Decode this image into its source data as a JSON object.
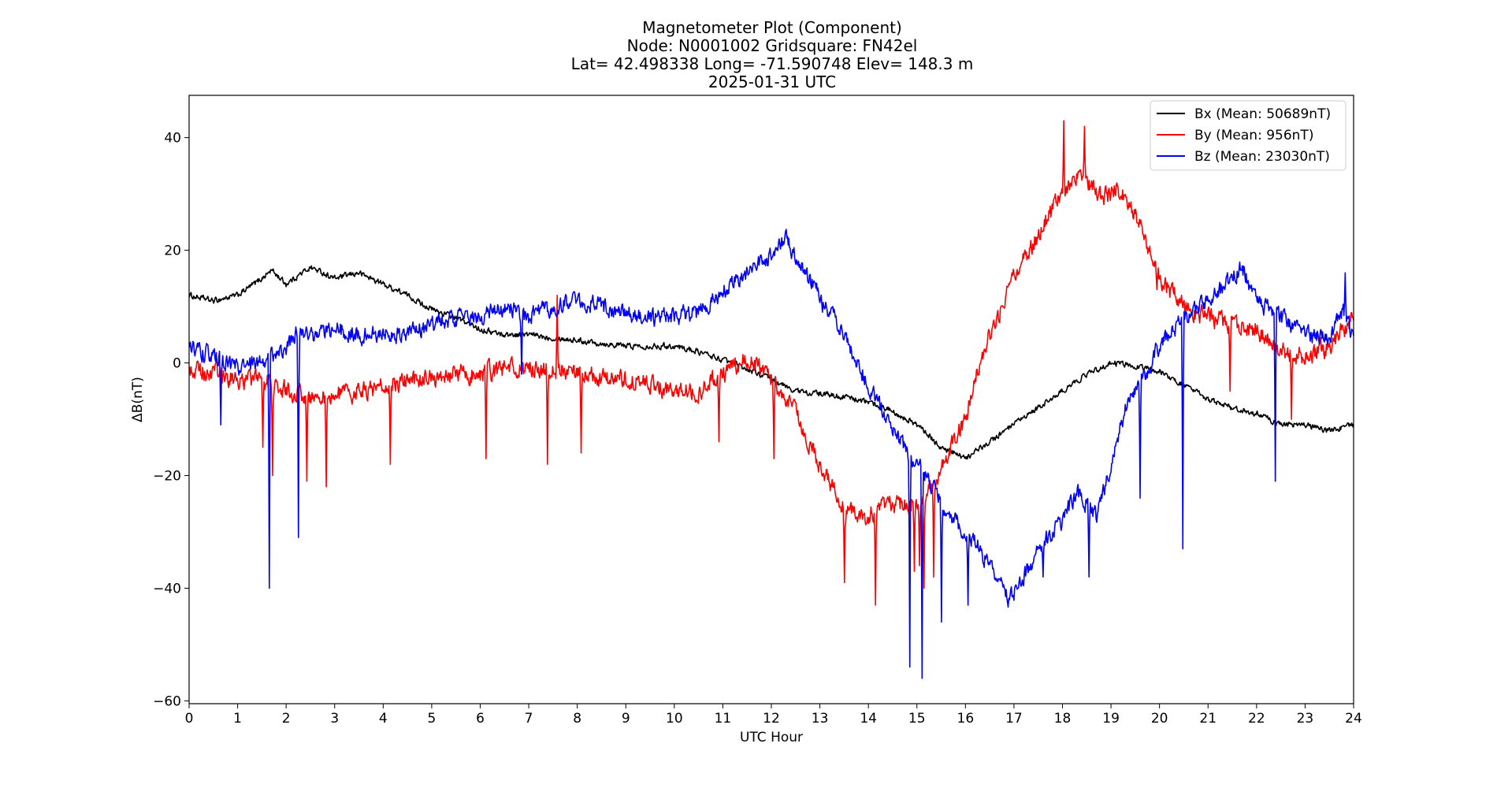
{
  "chart_data": {
    "type": "line",
    "title_lines": [
      "Magnetometer Plot (Component)",
      "Node:  N0001002     Gridsquare:  FN42el",
      "Lat= 42.498338    Long= -71.590748    Elev= 148.3 m",
      "2025-01-31  UTC"
    ],
    "xlabel": "UTC Hour",
    "ylabel": "ΔB(nT)",
    "xlim": [
      0,
      24
    ],
    "ylim": [
      -60.5,
      47.5
    ],
    "xticks": [
      0,
      1,
      2,
      3,
      4,
      5,
      6,
      7,
      8,
      9,
      10,
      11,
      12,
      13,
      14,
      15,
      16,
      17,
      18,
      19,
      20,
      21,
      22,
      23,
      24
    ],
    "xtick_labels": [
      "0",
      "1",
      "2",
      "3",
      "4",
      "5",
      "6",
      "7",
      "8",
      "9",
      "10",
      "11",
      "12",
      "13",
      "14",
      "15",
      "16",
      "17",
      "18",
      "19",
      "20",
      "21",
      "22",
      "23",
      "24"
    ],
    "yticks": [
      40,
      20,
      0,
      -20,
      -40,
      -60
    ],
    "ytick_labels": [
      "40",
      "20",
      "0",
      "−20",
      "−40",
      "−60"
    ],
    "grid": false,
    "legend_position": "top-right",
    "series": [
      {
        "name": "Bx (Mean: 50689nT)",
        "color": "#000000",
        "noise": 0.8,
        "spikes": [],
        "points": [
          [
            0,
            12
          ],
          [
            0.5,
            11
          ],
          [
            1,
            12
          ],
          [
            1.5,
            15
          ],
          [
            1.7,
            16.5
          ],
          [
            2,
            14
          ],
          [
            2.5,
            17
          ],
          [
            3,
            15
          ],
          [
            3.5,
            16
          ],
          [
            4,
            14
          ],
          [
            4.5,
            12
          ],
          [
            5,
            9.5
          ],
          [
            5.5,
            8
          ],
          [
            6,
            6
          ],
          [
            6.5,
            5
          ],
          [
            7,
            5
          ],
          [
            7.5,
            4.5
          ],
          [
            8,
            4
          ],
          [
            8.5,
            3.5
          ],
          [
            9,
            3
          ],
          [
            9.5,
            3
          ],
          [
            10,
            3
          ],
          [
            10.5,
            2
          ],
          [
            11,
            0.5
          ],
          [
            11.5,
            -1
          ],
          [
            12,
            -3
          ],
          [
            12.5,
            -5
          ],
          [
            13,
            -5.5
          ],
          [
            13.5,
            -6
          ],
          [
            14,
            -7
          ],
          [
            14.5,
            -8.5
          ],
          [
            15,
            -11
          ],
          [
            15.5,
            -15
          ],
          [
            16,
            -17
          ],
          [
            16.5,
            -14
          ],
          [
            17,
            -11
          ],
          [
            17.5,
            -8
          ],
          [
            18,
            -5
          ],
          [
            18.5,
            -2
          ],
          [
            19,
            0
          ],
          [
            19.5,
            -0.5
          ],
          [
            20,
            -1.5
          ],
          [
            20.5,
            -4
          ],
          [
            21,
            -6.5
          ],
          [
            21.5,
            -8
          ],
          [
            22,
            -9
          ],
          [
            22.5,
            -11
          ],
          [
            23,
            -11
          ],
          [
            23.5,
            -12
          ],
          [
            24,
            -11
          ]
        ]
      },
      {
        "name": "By (Mean: 956nT)",
        "color": "#ff0000",
        "noise": 2.6,
        "spikes": [
          [
            1.52,
            -15
          ],
          [
            1.72,
            -20
          ],
          [
            2.42,
            -21
          ],
          [
            2.82,
            -22
          ],
          [
            4.15,
            -18
          ],
          [
            6.12,
            -17
          ],
          [
            7.38,
            -18
          ],
          [
            7.58,
            12
          ],
          [
            8.08,
            -16
          ],
          [
            10.92,
            -14
          ],
          [
            12.05,
            -17
          ],
          [
            13.5,
            -39
          ],
          [
            14.15,
            -43
          ],
          [
            14.95,
            -37
          ],
          [
            15.05,
            -36
          ],
          [
            15.15,
            -40
          ],
          [
            15.35,
            -38
          ],
          [
            18.02,
            43
          ],
          [
            18.45,
            42
          ],
          [
            19.95,
            13
          ],
          [
            21.45,
            -5
          ],
          [
            22.72,
            -10
          ]
        ],
        "points": [
          [
            0,
            -1
          ],
          [
            0.5,
            -2
          ],
          [
            1,
            -3
          ],
          [
            1.5,
            -3
          ],
          [
            2,
            -5
          ],
          [
            2.5,
            -6
          ],
          [
            3,
            -6
          ],
          [
            3.5,
            -5
          ],
          [
            4,
            -4
          ],
          [
            4.5,
            -3
          ],
          [
            5,
            -3
          ],
          [
            5.5,
            -2
          ],
          [
            6,
            -2
          ],
          [
            6.5,
            -1
          ],
          [
            7,
            -1
          ],
          [
            7.5,
            -1
          ],
          [
            8,
            -2
          ],
          [
            8.5,
            -3
          ],
          [
            9,
            -3
          ],
          [
            9.5,
            -4
          ],
          [
            10,
            -5
          ],
          [
            10.5,
            -5
          ],
          [
            11,
            -2
          ],
          [
            11.5,
            1
          ],
          [
            12,
            -3
          ],
          [
            12.5,
            -9
          ],
          [
            13,
            -18
          ],
          [
            13.5,
            -26
          ],
          [
            14,
            -27
          ],
          [
            14.5,
            -25
          ],
          [
            15,
            -25
          ],
          [
            15.3,
            -22
          ],
          [
            15.6,
            -17
          ],
          [
            16,
            -10
          ],
          [
            16.2,
            -3
          ],
          [
            16.5,
            5
          ],
          [
            17,
            15
          ],
          [
            17.5,
            23
          ],
          [
            18,
            30
          ],
          [
            18.4,
            34
          ],
          [
            18.8,
            29
          ],
          [
            19.1,
            31
          ],
          [
            19.5,
            27
          ],
          [
            19.8,
            20
          ],
          [
            20,
            15
          ],
          [
            20.5,
            10
          ],
          [
            21,
            8
          ],
          [
            21.5,
            7
          ],
          [
            22,
            6
          ],
          [
            22.5,
            2
          ],
          [
            23,
            1
          ],
          [
            23.5,
            3
          ],
          [
            24,
            8
          ]
        ]
      },
      {
        "name": "Bz (Mean: 23030nT)",
        "color": "#0000ff",
        "noise": 2.4,
        "spikes": [
          [
            0.65,
            -11
          ],
          [
            1.65,
            -40
          ],
          [
            2.25,
            -31
          ],
          [
            6.85,
            -2
          ],
          [
            13.05,
            9
          ],
          [
            14.85,
            -54
          ],
          [
            15.1,
            -56
          ],
          [
            15.5,
            -46
          ],
          [
            16.05,
            -43
          ],
          [
            17.6,
            -38
          ],
          [
            18.55,
            -38
          ],
          [
            19.6,
            -24
          ],
          [
            20.48,
            -33
          ],
          [
            22.38,
            -21
          ],
          [
            23.82,
            16
          ]
        ],
        "points": [
          [
            0,
            3
          ],
          [
            0.5,
            1
          ],
          [
            1,
            -1
          ],
          [
            1.5,
            0
          ],
          [
            2,
            3
          ],
          [
            2.3,
            6
          ],
          [
            2.6,
            5
          ],
          [
            3,
            6
          ],
          [
            3.5,
            5
          ],
          [
            4,
            5
          ],
          [
            4.5,
            5
          ],
          [
            5,
            7
          ],
          [
            5.5,
            8
          ],
          [
            6,
            8
          ],
          [
            6.5,
            10
          ],
          [
            7,
            8
          ],
          [
            7.5,
            10
          ],
          [
            8,
            11
          ],
          [
            8.5,
            10
          ],
          [
            9,
            9
          ],
          [
            9.5,
            8
          ],
          [
            10,
            8
          ],
          [
            10.5,
            9
          ],
          [
            11,
            13
          ],
          [
            11.5,
            16
          ],
          [
            12,
            19
          ],
          [
            12.3,
            22
          ],
          [
            12.6,
            17
          ],
          [
            13,
            12
          ],
          [
            13.5,
            5
          ],
          [
            14,
            -4
          ],
          [
            14.5,
            -12
          ],
          [
            15,
            -18
          ],
          [
            15.3,
            -22
          ],
          [
            15.6,
            -26
          ],
          [
            16,
            -30
          ],
          [
            16.3,
            -33
          ],
          [
            16.6,
            -38
          ],
          [
            16.9,
            -42
          ],
          [
            17.2,
            -38
          ],
          [
            17.5,
            -33
          ],
          [
            18,
            -28
          ],
          [
            18.3,
            -23
          ],
          [
            18.7,
            -27
          ],
          [
            19,
            -18
          ],
          [
            19.3,
            -8
          ],
          [
            19.7,
            -2
          ],
          [
            20,
            3
          ],
          [
            20.5,
            8
          ],
          [
            21,
            11
          ],
          [
            21.5,
            15
          ],
          [
            21.7,
            17
          ],
          [
            22,
            11
          ],
          [
            22.5,
            8
          ],
          [
            23,
            5
          ],
          [
            23.5,
            5
          ],
          [
            23.8,
            9
          ],
          [
            24,
            4
          ]
        ]
      }
    ]
  }
}
